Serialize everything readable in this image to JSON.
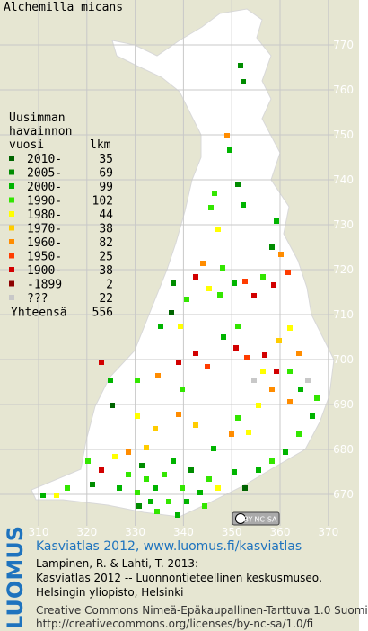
{
  "title": "Alchemilla micans",
  "legend": {
    "heading": [
      "Uusimman",
      "havainnon"
    ],
    "year_header": "vuosi",
    "count_header": "lkm",
    "items": [
      {
        "label": "2010-",
        "count": 35,
        "color": "#006400"
      },
      {
        "label": "2005-",
        "count": 69,
        "color": "#008c00"
      },
      {
        "label": "2000-",
        "count": 99,
        "color": "#00b400"
      },
      {
        "label": "1990-",
        "count": 102,
        "color": "#33e600"
      },
      {
        "label": "1980-",
        "count": 44,
        "color": "#ffff00"
      },
      {
        "label": "1970-",
        "count": 38,
        "color": "#ffcc00"
      },
      {
        "label": "1960-",
        "count": 82,
        "color": "#ff8c00"
      },
      {
        "label": "1950-",
        "count": 25,
        "color": "#ff3c00"
      },
      {
        "label": "1900-",
        "count": 38,
        "color": "#d20000"
      },
      {
        "label": "-1899",
        "count": 2,
        "color": "#8c0000"
      },
      {
        "label": "???",
        "count": 22,
        "color": "#c8c8c8"
      }
    ],
    "total_label": "Yhteensä",
    "total": 556
  },
  "x_labels": [
    310,
    320,
    330,
    340,
    350,
    360,
    370
  ],
  "y_labels": [
    670,
    680,
    690,
    700,
    710,
    720,
    730,
    740,
    750,
    760,
    770
  ],
  "cc_badge": "BY-NC-SA",
  "logo": "LUOMUS",
  "source_link": "Kasviatlas 2012, www.luomus.fi/kasviatlas",
  "citation": [
    "Lampinen, R. & Lahti, T. 2013:",
    "Kasviatlas 2012 -- Luonnontieteellinen keskusmuseo,",
    "Helsingin yliopisto, Helsinki"
  ],
  "license": [
    "Creative Commons Nimeä-Epäkaupallinen-Tarttuva 1.0 Suomi",
    "http://creativecommons.org/licenses/by-nc-sa/1.0/fi"
  ]
}
